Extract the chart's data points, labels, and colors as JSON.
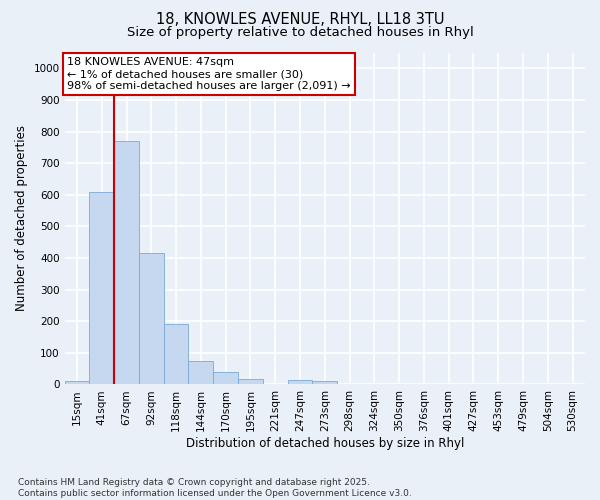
{
  "title_line1": "18, KNOWLES AVENUE, RHYL, LL18 3TU",
  "title_line2": "Size of property relative to detached houses in Rhyl",
  "xlabel": "Distribution of detached houses by size in Rhyl",
  "ylabel": "Number of detached properties",
  "categories": [
    "15sqm",
    "41sqm",
    "67sqm",
    "92sqm",
    "118sqm",
    "144sqm",
    "170sqm",
    "195sqm",
    "221sqm",
    "247sqm",
    "273sqm",
    "298sqm",
    "324sqm",
    "350sqm",
    "376sqm",
    "401sqm",
    "427sqm",
    "453sqm",
    "479sqm",
    "504sqm",
    "530sqm"
  ],
  "values": [
    12,
    610,
    770,
    415,
    190,
    75,
    38,
    17,
    0,
    13,
    12,
    0,
    0,
    0,
    0,
    0,
    0,
    0,
    0,
    0,
    0
  ],
  "bar_color": "#c5d8f0",
  "bar_edge_color": "#7aaad4",
  "vline_x": 1.5,
  "vline_color": "#cc0000",
  "ylim": [
    0,
    1050
  ],
  "yticks": [
    0,
    100,
    200,
    300,
    400,
    500,
    600,
    700,
    800,
    900,
    1000
  ],
  "annotation_text": "18 KNOWLES AVENUE: 47sqm\n← 1% of detached houses are smaller (30)\n98% of semi-detached houses are larger (2,091) →",
  "footer_text": "Contains HM Land Registry data © Crown copyright and database right 2025.\nContains public sector information licensed under the Open Government Licence v3.0.",
  "background_color": "#eaf0f8",
  "grid_color": "#ffffff",
  "title_fontsize": 10.5,
  "subtitle_fontsize": 9.5,
  "axis_label_fontsize": 8.5,
  "tick_fontsize": 7.5,
  "annotation_fontsize": 8,
  "footer_fontsize": 6.5
}
